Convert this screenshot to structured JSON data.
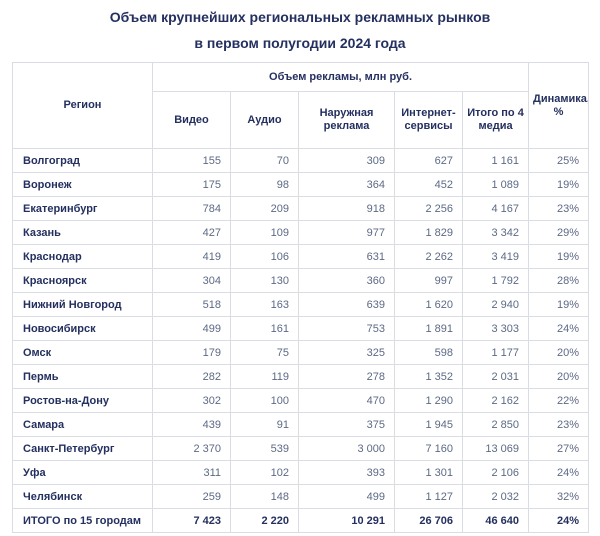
{
  "title": {
    "line1": "Объем крупнейших региональных рекламных рынков",
    "line2": "в первом полугодии 2024 года"
  },
  "table": {
    "region_header": "Регион",
    "group_header": "Объем рекламы, млн руб.",
    "dynamics_header": "Динамика, %",
    "media_headers": [
      "Видео",
      "Аудио",
      "Наружная реклама",
      "Интернет-сервисы",
      "Итого по 4 медиа"
    ],
    "total_label": "ИТОГО по 15 городам"
  },
  "colors": {
    "navy_text": "#24305f",
    "number_text": "#5c6a84",
    "border": "#d9dde3",
    "background": "#ffffff"
  },
  "chart_data": {
    "type": "table",
    "title": "Объем крупнейших региональных рекламных рынков в первом полугодии 2024 года",
    "unit": "млн руб.",
    "columns": [
      "Регион",
      "Видео",
      "Аудио",
      "Наружная реклама",
      "Интернет-сервисы",
      "Итого по 4 медиа",
      "Динамика, %"
    ],
    "rows": [
      {
        "region": "Волгоград",
        "video": 155,
        "audio": 70,
        "outdoor": 309,
        "internet": 627,
        "total4": 1161,
        "dynamics_pct": 25
      },
      {
        "region": "Воронеж",
        "video": 175,
        "audio": 98,
        "outdoor": 364,
        "internet": 452,
        "total4": 1089,
        "dynamics_pct": 19
      },
      {
        "region": "Екатеринбург",
        "video": 784,
        "audio": 209,
        "outdoor": 918,
        "internet": 2256,
        "total4": 4167,
        "dynamics_pct": 23
      },
      {
        "region": "Казань",
        "video": 427,
        "audio": 109,
        "outdoor": 977,
        "internet": 1829,
        "total4": 3342,
        "dynamics_pct": 29
      },
      {
        "region": "Краснодар",
        "video": 419,
        "audio": 106,
        "outdoor": 631,
        "internet": 2262,
        "total4": 3419,
        "dynamics_pct": 19
      },
      {
        "region": "Красноярск",
        "video": 304,
        "audio": 130,
        "outdoor": 360,
        "internet": 997,
        "total4": 1792,
        "dynamics_pct": 28
      },
      {
        "region": "Нижний Новгород",
        "video": 518,
        "audio": 163,
        "outdoor": 639,
        "internet": 1620,
        "total4": 2940,
        "dynamics_pct": 19
      },
      {
        "region": "Новосибирск",
        "video": 499,
        "audio": 161,
        "outdoor": 753,
        "internet": 1891,
        "total4": 3303,
        "dynamics_pct": 24
      },
      {
        "region": "Омск",
        "video": 179,
        "audio": 75,
        "outdoor": 325,
        "internet": 598,
        "total4": 1177,
        "dynamics_pct": 20
      },
      {
        "region": "Пермь",
        "video": 282,
        "audio": 119,
        "outdoor": 278,
        "internet": 1352,
        "total4": 2031,
        "dynamics_pct": 20
      },
      {
        "region": "Ростов-на-Дону",
        "video": 302,
        "audio": 100,
        "outdoor": 470,
        "internet": 1290,
        "total4": 2162,
        "dynamics_pct": 22
      },
      {
        "region": "Самара",
        "video": 439,
        "audio": 91,
        "outdoor": 375,
        "internet": 1945,
        "total4": 2850,
        "dynamics_pct": 23
      },
      {
        "region": "Санкт-Петербург",
        "video": 2370,
        "audio": 539,
        "outdoor": 3000,
        "internet": 7160,
        "total4": 13069,
        "dynamics_pct": 27
      },
      {
        "region": "Уфа",
        "video": 311,
        "audio": 102,
        "outdoor": 393,
        "internet": 1301,
        "total4": 2106,
        "dynamics_pct": 24
      },
      {
        "region": "Челябинск",
        "video": 259,
        "audio": 148,
        "outdoor": 499,
        "internet": 1127,
        "total4": 2032,
        "dynamics_pct": 32
      }
    ],
    "total_row": {
      "region": "ИТОГО по 15 городам",
      "video": 7423,
      "audio": 2220,
      "outdoor": 10291,
      "internet": 26706,
      "total4": 46640,
      "dynamics_pct": 24
    }
  }
}
